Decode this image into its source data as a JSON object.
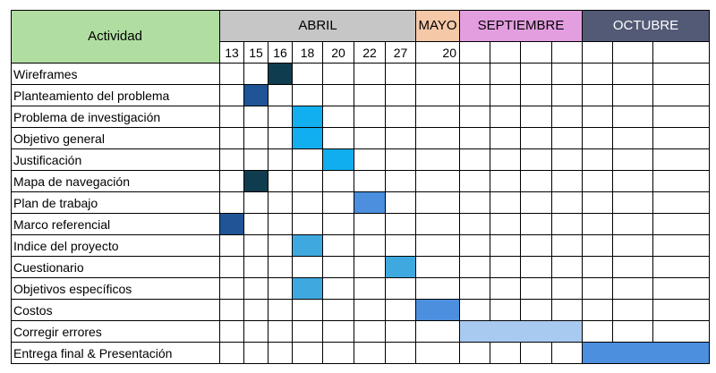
{
  "header": {
    "activity_label": "Actividad",
    "months": [
      {
        "label": "ABRIL",
        "color": "#c6c6c6",
        "text_color": "#000000"
      },
      {
        "label": "MAYO",
        "color": "#f5c8a8",
        "text_color": "#000000"
      },
      {
        "label": "SEPTIEMBRE",
        "color": "#e39ee0",
        "text_color": "#000000"
      },
      {
        "label": "OCTUBRE",
        "color": "#535a76",
        "text_color": "#ffffff"
      }
    ],
    "activity_color": "#b0dea1",
    "dates": [
      "13",
      "15",
      "16",
      "18",
      "20",
      "22",
      "27",
      "20",
      "",
      "",
      "",
      "",
      "",
      "",
      ""
    ]
  },
  "tasks": [
    {
      "name": "Wireframes",
      "start": 2,
      "span": 1,
      "color": "#0f3d4f"
    },
    {
      "name": "Planteamiento del problema",
      "start": 1,
      "span": 1,
      "color": "#1f5596"
    },
    {
      "name": "Problema de investigación",
      "start": 3,
      "span": 1,
      "color": "#11aff0"
    },
    {
      "name": "Objetivo general",
      "start": 3,
      "span": 1,
      "color": "#11aff0"
    },
    {
      "name": "Justificación",
      "start": 4,
      "span": 1,
      "color": "#10aeee"
    },
    {
      "name": "Mapa de navegación",
      "start": 1,
      "span": 1,
      "color": "#0f3d4f"
    },
    {
      "name": "Plan de trabajo",
      "start": 5,
      "span": 1,
      "color": "#4b8fde"
    },
    {
      "name": "Marco referencial",
      "start": 0,
      "span": 1,
      "color": "#1f5596"
    },
    {
      "name": "Indice del proyecto",
      "start": 3,
      "span": 1,
      "color": "#3fa9df"
    },
    {
      "name": "Cuestionario",
      "start": 6,
      "span": 1,
      "color": "#3fa9df"
    },
    {
      "name": "Objetivos específicos",
      "start": 3,
      "span": 1,
      "color": "#3fa9df"
    },
    {
      "name": "Costos",
      "start": 7,
      "span": 1,
      "color": "#4b8fde"
    },
    {
      "name": "Corregir errores",
      "start": 8,
      "span": 4,
      "color": "#a8caf0"
    },
    {
      "name": "Entrega final & Presentación",
      "start": 12,
      "span": 3,
      "color": "#4b8fde"
    }
  ]
}
